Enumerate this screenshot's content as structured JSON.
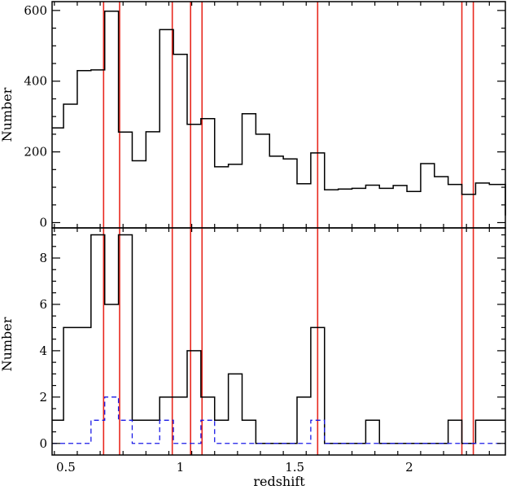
{
  "chart_data": [
    {
      "type": "histogram",
      "panel": "top",
      "ylabel": "Number",
      "xlim": [
        0.44,
        2.42
      ],
      "ylim": [
        -15,
        625
      ],
      "xticks": [
        0.5,
        1,
        1.5,
        2
      ],
      "yticks": [
        0,
        200,
        400,
        600
      ],
      "ytick_labels": [
        "0",
        "200",
        "400",
        "600"
      ],
      "series": [
        {
          "color": "#000000",
          "style": "solid",
          "edges": [
            0.44,
            0.49,
            0.55,
            0.61,
            0.67,
            0.73,
            0.79,
            0.85,
            0.91,
            0.97,
            1.03,
            1.09,
            1.15,
            1.21,
            1.27,
            1.33,
            1.39,
            1.45,
            1.51,
            1.57,
            1.63,
            1.69,
            1.75,
            1.81,
            1.87,
            1.93,
            1.99,
            2.05,
            2.11,
            2.17,
            2.23,
            2.29,
            2.35,
            2.42
          ],
          "values": [
            268,
            335,
            430,
            432,
            598,
            256,
            175,
            257,
            546,
            476,
            278,
            294,
            158,
            165,
            308,
            250,
            188,
            180,
            110,
            197,
            93,
            95,
            97,
            106,
            97,
            105,
            88,
            167,
            130,
            108,
            80,
            112,
            108
          ]
        }
      ],
      "end_value": 20,
      "vlines": [
        0.665,
        0.735,
        0.965,
        1.045,
        1.095,
        1.6,
        2.23,
        2.28
      ],
      "vline_color": "#e8281e"
    },
    {
      "type": "histogram",
      "panel": "bottom",
      "xlabel": "redshift",
      "ylabel": "Number",
      "xlim": [
        0.44,
        2.42
      ],
      "ylim": [
        -0.5,
        9.3
      ],
      "xticks": [
        0.5,
        1,
        1.5,
        2
      ],
      "xtick_labels": [
        "0.5",
        "1",
        "1.5",
        "2"
      ],
      "yticks": [
        0,
        2,
        4,
        6,
        8
      ],
      "ytick_labels": [
        "0",
        "2",
        "4",
        "6",
        "8"
      ],
      "series": [
        {
          "color": "#000000",
          "style": "solid",
          "edges": [
            0.44,
            0.49,
            0.55,
            0.61,
            0.67,
            0.73,
            0.79,
            0.85,
            0.91,
            0.97,
            1.03,
            1.09,
            1.15,
            1.21,
            1.27,
            1.33,
            1.39,
            1.45,
            1.51,
            1.57,
            1.63,
            1.69,
            1.75,
            1.81,
            1.87,
            1.93,
            1.99,
            2.05,
            2.11,
            2.17,
            2.23,
            2.29,
            2.35,
            2.42
          ],
          "values": [
            1,
            5,
            5,
            9,
            6,
            9,
            1,
            1,
            2,
            2,
            4,
            2,
            1,
            3,
            1,
            0,
            0,
            0,
            2,
            5,
            0,
            0,
            0,
            1,
            0,
            0,
            0,
            0,
            0,
            1,
            0,
            1,
            1
          ]
        },
        {
          "color": "#1a1ae6",
          "style": "dashed",
          "edges": [
            0.44,
            0.49,
            0.55,
            0.61,
            0.67,
            0.73,
            0.79,
            0.85,
            0.91,
            0.97,
            1.03,
            1.09,
            1.15,
            1.21,
            1.27,
            1.33,
            1.39,
            1.45,
            1.51,
            1.57,
            1.63,
            1.69,
            1.75,
            1.81,
            1.87,
            1.93,
            1.99,
            2.05,
            2.11,
            2.17,
            2.23,
            2.29,
            2.35,
            2.42
          ],
          "values": [
            0,
            0,
            0,
            1,
            2,
            1,
            0,
            0,
            1,
            0,
            0,
            1,
            0,
            0,
            0,
            0,
            0,
            0,
            0,
            1,
            0,
            0,
            0,
            0,
            0,
            0,
            0,
            0,
            0,
            0,
            0,
            0,
            0
          ]
        }
      ],
      "vlines": [
        0.665,
        0.735,
        0.965,
        1.045,
        1.095,
        1.6,
        2.23,
        2.28
      ],
      "vline_color": "#e8281e"
    }
  ]
}
